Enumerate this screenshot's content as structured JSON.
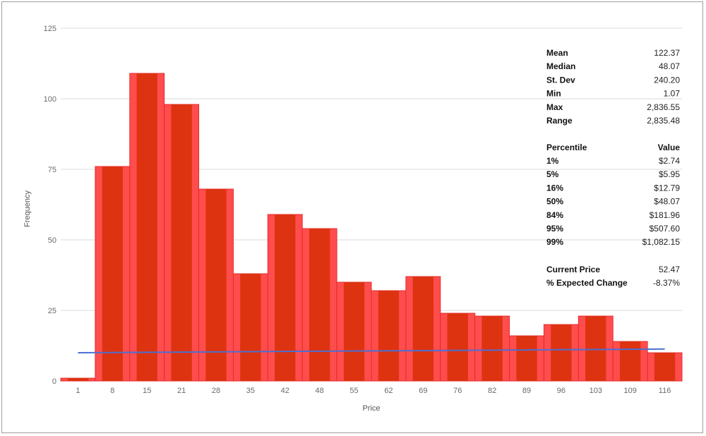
{
  "chart_data": {
    "type": "bar",
    "xlabel": "Price",
    "ylabel": "Frequency",
    "ylim": [
      0,
      125
    ],
    "y_ticks": [
      0,
      25,
      50,
      75,
      100,
      125
    ],
    "grid": true,
    "categories": [
      "1",
      "8",
      "15",
      "21",
      "28",
      "35",
      "42",
      "48",
      "55",
      "62",
      "69",
      "76",
      "82",
      "89",
      "96",
      "103",
      "109",
      "116"
    ],
    "values": [
      1,
      76,
      109,
      98,
      68,
      38,
      59,
      54,
      35,
      32,
      37,
      24,
      23,
      16,
      20,
      23,
      14,
      10
    ],
    "trend_line": {
      "start": 10,
      "end": 11.3
    },
    "colors": {
      "bar_outer": "#ff4d4d",
      "bar_inner": "#dd3311",
      "trend": "#4a6fd1",
      "grid": "#d9d9d9"
    }
  },
  "stats": [
    {
      "label": "Mean",
      "value": "122.37"
    },
    {
      "label": "Median",
      "value": "48.07"
    },
    {
      "label": "St. Dev",
      "value": "240.20"
    },
    {
      "label": "Min",
      "value": "1.07"
    },
    {
      "label": "Max",
      "value": "2,836.55"
    },
    {
      "label": "Range",
      "value": "2,835.48"
    }
  ],
  "percentiles": {
    "header_label": "Percentile",
    "header_value": "Value",
    "rows": [
      {
        "label": "1%",
        "value": "$2.74"
      },
      {
        "label": "5%",
        "value": "$5.95"
      },
      {
        "label": "16%",
        "value": "$12.79"
      },
      {
        "label": "50%",
        "value": "$48.07"
      },
      {
        "label": "84%",
        "value": "$181.96"
      },
      {
        "label": "95%",
        "value": "$507.60"
      },
      {
        "label": "99%",
        "value": "$1,082.15"
      }
    ]
  },
  "summary": [
    {
      "label": "Current Price",
      "value": "52.47"
    },
    {
      "label": "% Expected Change",
      "value": "-8.37%"
    }
  ]
}
